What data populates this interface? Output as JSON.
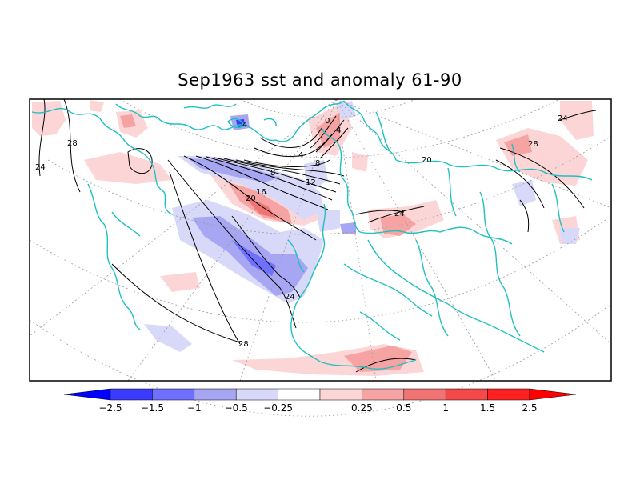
{
  "title": "Sep1963 sst and anomaly 61-90",
  "colorbar": {
    "colors": [
      "#0000ff",
      "#3b3bff",
      "#7070ff",
      "#a6a6f2",
      "#d8d8f8",
      "#ffffff",
      "#fcd6d6",
      "#f5a3a3",
      "#f27373",
      "#f54848",
      "#ff2020",
      "#ff0000"
    ],
    "tick_labels": [
      "-2.5",
      "-1.5",
      "-1",
      "-0.5",
      "-0.25",
      "0.25",
      "0.5",
      "1",
      "1.5",
      "2.5"
    ]
  },
  "contour_labels": [
    "28",
    "24",
    "4",
    "0",
    "4",
    "4",
    "8",
    "8",
    "12",
    "16",
    "20",
    "20",
    "28",
    "24",
    "24",
    "28",
    "24"
  ],
  "colors": {
    "coast": "#20c0c0",
    "contour": "#000000",
    "grid": "#9a9a9a"
  }
}
